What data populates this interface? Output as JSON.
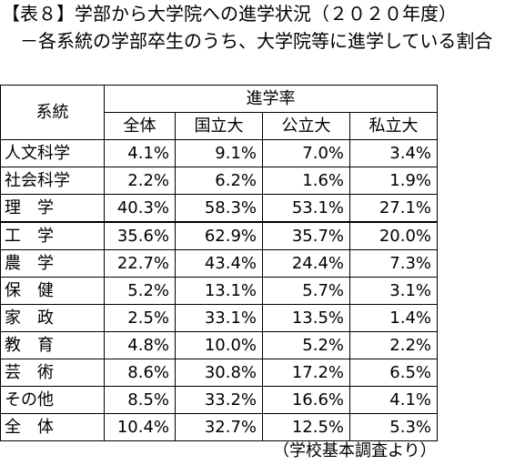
{
  "document": {
    "title": "【表８】学部から大学院への進学状況（２０２０年度）",
    "subtitle": "－各系統の学部卒生のうち、大学院等に進学している割合",
    "source": "（学校基本調査より）"
  },
  "table": {
    "header_field": "系統",
    "header_group": "進学率",
    "columns": [
      "全体",
      "国立大",
      "公立大",
      "私立大"
    ],
    "rows": [
      {
        "label": "人文科学",
        "values": [
          "4.1%",
          "9.1%",
          "7.0%",
          "3.4%"
        ]
      },
      {
        "label": "社会科学",
        "values": [
          "2.2%",
          "6.2%",
          "1.6%",
          "1.9%"
        ]
      },
      {
        "label": "理　学",
        "values": [
          "40.3%",
          "58.3%",
          "53.1%",
          "27.1%"
        ]
      },
      {
        "label": "工　学",
        "values": [
          "35.6%",
          "62.9%",
          "35.7%",
          "20.0%"
        ]
      },
      {
        "label": "農　学",
        "values": [
          "22.7%",
          "43.4%",
          "24.4%",
          "7.3%"
        ]
      },
      {
        "label": "保　健",
        "values": [
          "5.2%",
          "13.1%",
          "5.7%",
          "3.1%"
        ]
      },
      {
        "label": "家　政",
        "values": [
          "2.5%",
          "33.1%",
          "13.5%",
          "1.4%"
        ]
      },
      {
        "label": "教　育",
        "values": [
          "4.8%",
          "10.0%",
          "5.2%",
          "2.2%"
        ]
      },
      {
        "label": "芸　術",
        "values": [
          "8.6%",
          "30.8%",
          "17.2%",
          "6.5%"
        ]
      },
      {
        "label": "その他",
        "values": [
          "8.5%",
          "33.2%",
          "16.6%",
          "4.1%"
        ]
      },
      {
        "label": "全　体",
        "values": [
          "10.4%",
          "32.7%",
          "12.5%",
          "5.3%"
        ]
      }
    ]
  }
}
